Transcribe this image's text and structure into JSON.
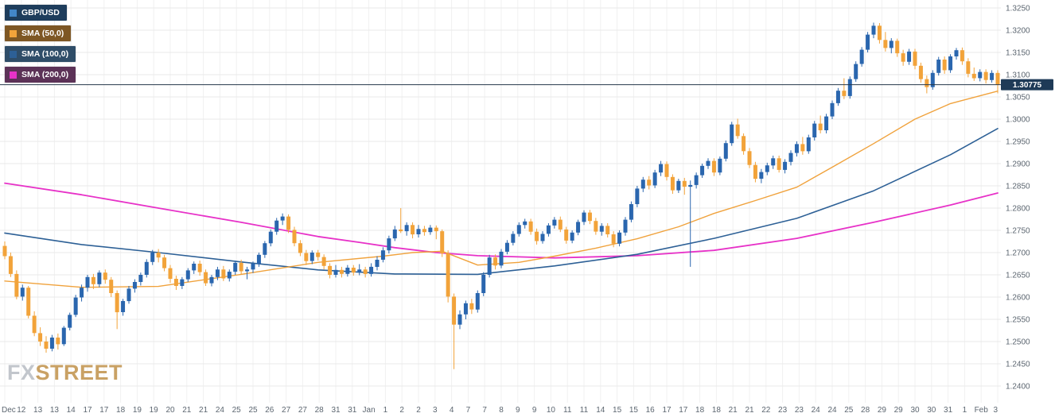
{
  "legend": {
    "items": [
      {
        "label": "GBP/USD",
        "bg": "#1e3d5c",
        "swatch": "#4286c8"
      },
      {
        "label": "SMA (50,0)",
        "bg": "#7e5724",
        "swatch": "#f2a33a"
      },
      {
        "label": "SMA (100,0)",
        "bg": "#2f4d68",
        "swatch": "#2d6096"
      },
      {
        "label": "SMA (200,0)",
        "bg": "#5c3257",
        "swatch": "#e732c8"
      }
    ]
  },
  "watermark": {
    "fx": "FX",
    "street": "STREET"
  },
  "last_price_label": "1.30775",
  "chart_data": {
    "type": "candlestick",
    "title": "GBP/USD",
    "overlays": [
      "SMA (50,0)",
      "SMA (100,0)",
      "SMA (200,0)"
    ],
    "last_price": 1.30775,
    "up_color": "#2a66ae",
    "down_color": "#f2a33a",
    "sma_colors": {
      "sma50": "#f0a23c",
      "sma100": "#2d6096",
      "sma200": "#e732c8"
    },
    "price_line_color": "#24374a",
    "price_label_bg": "#1e3a57",
    "grid": true,
    "legend_position": "top-left",
    "y_axis": {
      "min": 1.24,
      "max": 1.325,
      "step": 0.005,
      "labels": [
        "1.3250",
        "1.3200",
        "1.3150",
        "1.3100",
        "1.3050",
        "1.3000",
        "1.2950",
        "1.2900",
        "1.2850",
        "1.2800",
        "1.2750",
        "1.2700",
        "1.2650",
        "1.2600",
        "1.2550",
        "1.2500",
        "1.2450",
        "1.2400"
      ]
    },
    "x_axis": {
      "labels": [
        "Dec",
        "12",
        "13",
        "13",
        "14",
        "17",
        "17",
        "18",
        "19",
        "19",
        "20",
        "21",
        "21",
        "24",
        "25",
        "25",
        "26",
        "27",
        "27",
        "28",
        "31",
        "31",
        "Jan",
        "1",
        "2",
        "2",
        "3",
        "4",
        "7",
        "7",
        "8",
        "9",
        "9",
        "10",
        "11",
        "11",
        "14",
        "15",
        "15",
        "16",
        "17",
        "17",
        "18",
        "18",
        "21",
        "21",
        "22",
        "23",
        "23",
        "24",
        "24",
        "25",
        "28",
        "29",
        "29",
        "30",
        "30",
        "31",
        "1",
        "Feb",
        "3"
      ]
    },
    "candles": [
      [
        1.2715,
        1.2725,
        1.2685,
        1.2692
      ],
      [
        1.2692,
        1.27,
        1.2645,
        1.2652
      ],
      [
        1.2652,
        1.266,
        1.2595,
        1.2601
      ],
      [
        1.2601,
        1.2628,
        1.2592,
        1.2621
      ],
      [
        1.2621,
        1.2625,
        1.2552,
        1.2558
      ],
      [
        1.2558,
        1.2568,
        1.2512,
        1.2519
      ],
      [
        1.2519,
        1.2532,
        1.249,
        1.25
      ],
      [
        1.25,
        1.2512,
        1.2475,
        1.2484
      ],
      [
        1.2484,
        1.2515,
        1.2478,
        1.2509
      ],
      [
        1.2509,
        1.2518,
        1.2482,
        1.2494
      ],
      [
        1.2494,
        1.2535,
        1.249,
        1.2531
      ],
      [
        1.2531,
        1.2565,
        1.2525,
        1.256
      ],
      [
        1.256,
        1.2605,
        1.2555,
        1.2599
      ],
      [
        1.2599,
        1.2628,
        1.259,
        1.2621
      ],
      [
        1.2621,
        1.265,
        1.2612,
        1.2645
      ],
      [
        1.2645,
        1.2652,
        1.2618,
        1.2629
      ],
      [
        1.2629,
        1.266,
        1.2622,
        1.2655
      ],
      [
        1.2655,
        1.2662,
        1.263,
        1.2639
      ],
      [
        1.2639,
        1.2645,
        1.26,
        1.2609
      ],
      [
        1.2609,
        1.2615,
        1.2528,
        1.2566
      ],
      [
        1.2566,
        1.2596,
        1.2558,
        1.2591
      ],
      [
        1.2591,
        1.2625,
        1.2585,
        1.2619
      ],
      [
        1.2619,
        1.264,
        1.261,
        1.2634
      ],
      [
        1.2634,
        1.2655,
        1.2626,
        1.265
      ],
      [
        1.265,
        1.2685,
        1.2644,
        1.2679
      ],
      [
        1.2679,
        1.2706,
        1.2672,
        1.27
      ],
      [
        1.27,
        1.2708,
        1.2678,
        1.2689
      ],
      [
        1.2689,
        1.2695,
        1.2658,
        1.2665
      ],
      [
        1.2665,
        1.2672,
        1.2632,
        1.2641
      ],
      [
        1.2641,
        1.2648,
        1.2616,
        1.2625
      ],
      [
        1.2625,
        1.2645,
        1.2618,
        1.264
      ],
      [
        1.264,
        1.2665,
        1.2634,
        1.266
      ],
      [
        1.266,
        1.268,
        1.2652,
        1.2675
      ],
      [
        1.2675,
        1.2682,
        1.2648,
        1.2656
      ],
      [
        1.2656,
        1.2662,
        1.2625,
        1.2631
      ],
      [
        1.2631,
        1.265,
        1.2624,
        1.2645
      ],
      [
        1.2645,
        1.2668,
        1.2638,
        1.2662
      ],
      [
        1.2662,
        1.267,
        1.2636,
        1.2642
      ],
      [
        1.2642,
        1.2662,
        1.2635,
        1.2657
      ],
      [
        1.2657,
        1.2682,
        1.265,
        1.2677
      ],
      [
        1.2677,
        1.2684,
        1.265,
        1.2658
      ],
      [
        1.2658,
        1.2668,
        1.264,
        1.2662
      ],
      [
        1.2662,
        1.268,
        1.2654,
        1.2675
      ],
      [
        1.2675,
        1.27,
        1.2668,
        1.2695
      ],
      [
        1.2695,
        1.2726,
        1.2688,
        1.2721
      ],
      [
        1.2721,
        1.2752,
        1.2714,
        1.2747
      ],
      [
        1.2747,
        1.2778,
        1.274,
        1.2772
      ],
      [
        1.2772,
        1.2788,
        1.2762,
        1.2781
      ],
      [
        1.2781,
        1.2786,
        1.2744,
        1.2751
      ],
      [
        1.2751,
        1.2758,
        1.2714,
        1.2721
      ],
      [
        1.2721,
        1.2728,
        1.2692,
        1.2699
      ],
      [
        1.2699,
        1.2706,
        1.2672,
        1.2681
      ],
      [
        1.2681,
        1.2705,
        1.2674,
        1.27
      ],
      [
        1.27,
        1.2706,
        1.2682,
        1.269
      ],
      [
        1.269,
        1.2696,
        1.2662,
        1.267
      ],
      [
        1.267,
        1.2676,
        1.2642,
        1.265
      ],
      [
        1.265,
        1.2672,
        1.2644,
        1.2661
      ],
      [
        1.2661,
        1.2668,
        1.2644,
        1.2652
      ],
      [
        1.2652,
        1.2672,
        1.2646,
        1.2666
      ],
      [
        1.2666,
        1.2672,
        1.2648,
        1.2655
      ],
      [
        1.2655,
        1.2674,
        1.2649,
        1.2662
      ],
      [
        1.2662,
        1.2668,
        1.2644,
        1.2652
      ],
      [
        1.2652,
        1.2676,
        1.2646,
        1.2668
      ],
      [
        1.2668,
        1.2692,
        1.266,
        1.2684
      ],
      [
        1.2684,
        1.2712,
        1.2678,
        1.2705
      ],
      [
        1.2705,
        1.2738,
        1.2698,
        1.2732
      ],
      [
        1.2732,
        1.276,
        1.2726,
        1.2752
      ],
      [
        1.2752,
        1.28,
        1.2744,
        1.2748
      ],
      [
        1.2748,
        1.2768,
        1.2738,
        1.2762
      ],
      [
        1.2762,
        1.2768,
        1.2732,
        1.2741
      ],
      [
        1.2741,
        1.2762,
        1.2734,
        1.2753
      ],
      [
        1.2753,
        1.276,
        1.2738,
        1.2746
      ],
      [
        1.2746,
        1.2762,
        1.274,
        1.2756
      ],
      [
        1.2756,
        1.2761,
        1.273,
        1.2748
      ],
      [
        1.2748,
        1.2752,
        1.269,
        1.2698
      ],
      [
        1.2698,
        1.2705,
        1.2588,
        1.2601
      ],
      [
        1.2601,
        1.2608,
        1.2438,
        1.2538
      ],
      [
        1.2538,
        1.257,
        1.2528,
        1.2561
      ],
      [
        1.2561,
        1.2592,
        1.255,
        1.2586
      ],
      [
        1.2586,
        1.2596,
        1.2562,
        1.2572
      ],
      [
        1.2572,
        1.2615,
        1.2565,
        1.2609
      ],
      [
        1.2609,
        1.2656,
        1.2602,
        1.265
      ],
      [
        1.265,
        1.2695,
        1.2644,
        1.2689
      ],
      [
        1.2689,
        1.2696,
        1.2662,
        1.2671
      ],
      [
        1.2671,
        1.2708,
        1.2665,
        1.2702
      ],
      [
        1.2702,
        1.2728,
        1.2696,
        1.2722
      ],
      [
        1.2722,
        1.2748,
        1.2716,
        1.2742
      ],
      [
        1.2742,
        1.2768,
        1.2736,
        1.2762
      ],
      [
        1.2762,
        1.2776,
        1.2754,
        1.277
      ],
      [
        1.277,
        1.2776,
        1.274,
        1.2747
      ],
      [
        1.2747,
        1.2754,
        1.2718,
        1.2726
      ],
      [
        1.2726,
        1.2748,
        1.272,
        1.2742
      ],
      [
        1.2742,
        1.2766,
        1.2736,
        1.2761
      ],
      [
        1.2761,
        1.278,
        1.2754,
        1.2774
      ],
      [
        1.2774,
        1.2781,
        1.2746,
        1.2752
      ],
      [
        1.2752,
        1.2758,
        1.272,
        1.2727
      ],
      [
        1.2727,
        1.275,
        1.2721,
        1.2745
      ],
      [
        1.2745,
        1.2774,
        1.2739,
        1.2769
      ],
      [
        1.2769,
        1.2795,
        1.2762,
        1.279
      ],
      [
        1.279,
        1.2796,
        1.2764,
        1.2771
      ],
      [
        1.2771,
        1.2778,
        1.274,
        1.2747
      ],
      [
        1.2747,
        1.2766,
        1.2738,
        1.276
      ],
      [
        1.276,
        1.2766,
        1.2734,
        1.2741
      ],
      [
        1.2741,
        1.2748,
        1.2712,
        1.272
      ],
      [
        1.272,
        1.275,
        1.2714,
        1.2745
      ],
      [
        1.2745,
        1.278,
        1.2738,
        1.2774
      ],
      [
        1.2774,
        1.2815,
        1.2768,
        1.2809
      ],
      [
        1.2809,
        1.285,
        1.2802,
        1.2844
      ],
      [
        1.2844,
        1.287,
        1.2836,
        1.2864
      ],
      [
        1.2864,
        1.2872,
        1.2842,
        1.2851
      ],
      [
        1.2851,
        1.2886,
        1.2845,
        1.288
      ],
      [
        1.288,
        1.2906,
        1.2872,
        1.2899
      ],
      [
        1.2899,
        1.2905,
        1.2862,
        1.287
      ],
      [
        1.287,
        1.2876,
        1.2832,
        1.284
      ],
      [
        1.284,
        1.2866,
        1.2834,
        1.2861
      ],
      [
        1.2861,
        1.2868,
        1.283,
        1.2848
      ],
      [
        1.2848,
        1.2862,
        1.2668,
        1.2852
      ],
      [
        1.2852,
        1.288,
        1.2844,
        1.2874
      ],
      [
        1.2874,
        1.29,
        1.2868,
        1.2895
      ],
      [
        1.2895,
        1.2912,
        1.2888,
        1.2906
      ],
      [
        1.2906,
        1.2912,
        1.2872,
        1.288
      ],
      [
        1.288,
        1.2916,
        1.2874,
        1.2911
      ],
      [
        1.2911,
        1.2952,
        1.2905,
        1.2946
      ],
      [
        1.2946,
        1.2994,
        1.294,
        1.2988
      ],
      [
        1.2988,
        1.3001,
        1.2956,
        1.2962
      ],
      [
        1.2962,
        1.2968,
        1.292,
        1.2928
      ],
      [
        1.2928,
        1.2935,
        1.289,
        1.2897
      ],
      [
        1.2897,
        1.2904,
        1.2858,
        1.2866
      ],
      [
        1.2866,
        1.2888,
        1.2856,
        1.2881
      ],
      [
        1.2881,
        1.2902,
        1.2874,
        1.2896
      ],
      [
        1.2896,
        1.2918,
        1.2888,
        1.2912
      ],
      [
        1.2912,
        1.2918,
        1.288,
        1.2886
      ],
      [
        1.2886,
        1.291,
        1.2878,
        1.2904
      ],
      [
        1.2904,
        1.293,
        1.2896,
        1.2924
      ],
      [
        1.2924,
        1.295,
        1.2916,
        1.2944
      ],
      [
        1.2944,
        1.296,
        1.292,
        1.2928
      ],
      [
        1.2928,
        1.2965,
        1.2922,
        1.2959
      ],
      [
        1.2959,
        1.2996,
        1.2952,
        1.299
      ],
      [
        1.299,
        1.3008,
        1.2968,
        1.2975
      ],
      [
        1.2975,
        1.3012,
        1.2968,
        1.3006
      ],
      [
        1.3006,
        1.3042,
        1.3,
        1.3036
      ],
      [
        1.3036,
        1.307,
        1.303,
        1.3064
      ],
      [
        1.3064,
        1.3092,
        1.3045,
        1.3052
      ],
      [
        1.3052,
        1.3096,
        1.3046,
        1.309
      ],
      [
        1.309,
        1.313,
        1.3084,
        1.3124
      ],
      [
        1.3124,
        1.3162,
        1.3118,
        1.3156
      ],
      [
        1.3156,
        1.3196,
        1.315,
        1.319
      ],
      [
        1.319,
        1.3217,
        1.3182,
        1.321
      ],
      [
        1.321,
        1.3216,
        1.317,
        1.3178
      ],
      [
        1.3178,
        1.3196,
        1.3152,
        1.316
      ],
      [
        1.316,
        1.3182,
        1.3148,
        1.3176
      ],
      [
        1.3176,
        1.3181,
        1.314,
        1.3148
      ],
      [
        1.3148,
        1.3156,
        1.312,
        1.3129
      ],
      [
        1.3129,
        1.3158,
        1.3122,
        1.3152
      ],
      [
        1.3152,
        1.3158,
        1.3112,
        1.312
      ],
      [
        1.312,
        1.3127,
        1.3082,
        1.309
      ],
      [
        1.309,
        1.3098,
        1.3058,
        1.3072
      ],
      [
        1.3072,
        1.311,
        1.3066,
        1.3104
      ],
      [
        1.3104,
        1.314,
        1.3098,
        1.3134
      ],
      [
        1.3134,
        1.3141,
        1.3102,
        1.311
      ],
      [
        1.311,
        1.3146,
        1.3104,
        1.3141
      ],
      [
        1.3141,
        1.316,
        1.3134,
        1.3155
      ],
      [
        1.3155,
        1.3161,
        1.3122,
        1.313
      ],
      [
        1.313,
        1.3137,
        1.3094,
        1.3102
      ],
      [
        1.3102,
        1.3116,
        1.3086,
        1.3092
      ],
      [
        1.3092,
        1.3112,
        1.3085,
        1.3106
      ],
      [
        1.3106,
        1.3112,
        1.308,
        1.3088
      ],
      [
        1.3088,
        1.311,
        1.3082,
        1.3104
      ],
      [
        1.3104,
        1.311,
        1.3058,
        1.30775
      ]
    ],
    "sma50": [
      [
        0,
        1.2636
      ],
      [
        13,
        1.2622
      ],
      [
        26,
        1.2624
      ],
      [
        40,
        1.2651
      ],
      [
        53,
        1.2678
      ],
      [
        64,
        1.2692
      ],
      [
        69,
        1.27
      ],
      [
        74,
        1.2703
      ],
      [
        80,
        1.2672
      ],
      [
        87,
        1.2678
      ],
      [
        93,
        1.2692
      ],
      [
        100,
        1.271
      ],
      [
        107,
        1.2731
      ],
      [
        114,
        1.2758
      ],
      [
        120,
        1.2788
      ],
      [
        127,
        1.2817
      ],
      [
        134,
        1.2847
      ],
      [
        140,
        1.2892
      ],
      [
        147,
        1.2945
      ],
      [
        154,
        1.3
      ],
      [
        160,
        1.3035
      ],
      [
        168,
        1.3063
      ]
    ],
    "sma100": [
      [
        0,
        1.2744
      ],
      [
        13,
        1.2718
      ],
      [
        26,
        1.27
      ],
      [
        40,
        1.2679
      ],
      [
        53,
        1.2661
      ],
      [
        66,
        1.2652
      ],
      [
        80,
        1.2651
      ],
      [
        93,
        1.267
      ],
      [
        107,
        1.2696
      ],
      [
        120,
        1.2732
      ],
      [
        134,
        1.2777
      ],
      [
        147,
        1.2839
      ],
      [
        160,
        1.292
      ],
      [
        168,
        1.2979
      ]
    ],
    "sma200": [
      [
        0,
        1.2856
      ],
      [
        13,
        1.283
      ],
      [
        26,
        1.28
      ],
      [
        40,
        1.2768
      ],
      [
        53,
        1.2736
      ],
      [
        60,
        1.2723
      ],
      [
        66,
        1.2711
      ],
      [
        73,
        1.27
      ],
      [
        80,
        1.2693
      ],
      [
        93,
        1.2688
      ],
      [
        107,
        1.2693
      ],
      [
        120,
        1.2705
      ],
      [
        134,
        1.2732
      ],
      [
        147,
        1.2768
      ],
      [
        160,
        1.2807
      ],
      [
        168,
        1.2834
      ]
    ]
  }
}
